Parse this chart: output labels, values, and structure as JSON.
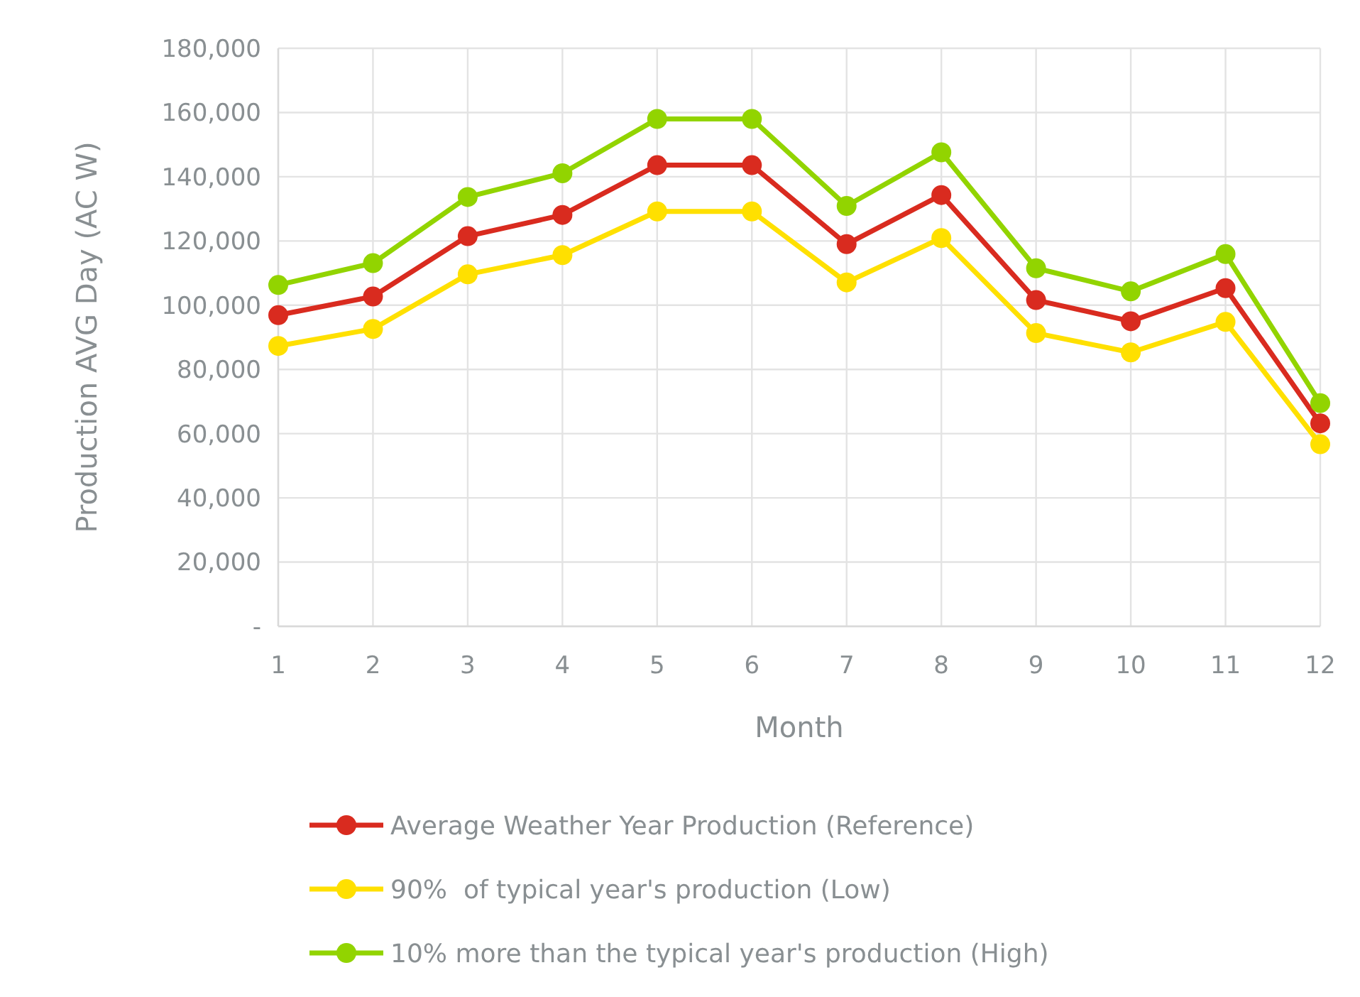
{
  "chart_data": {
    "type": "line",
    "xlabel": "Month",
    "ylabel": "Production AVG Day (AC W)",
    "x": [
      1,
      2,
      3,
      4,
      5,
      6,
      7,
      8,
      9,
      10,
      11,
      12
    ],
    "xlim": [
      1,
      12
    ],
    "xticks": [
      1,
      2,
      3,
      4,
      5,
      6,
      7,
      8,
      9,
      10,
      11,
      12
    ],
    "series": [
      {
        "name": "Average Weather Year Production (Reference)",
        "color": "#d92b1f",
        "values": [
          96900,
          102700,
          121500,
          128100,
          143600,
          143600,
          119000,
          134300,
          101600,
          95000,
          105300,
          63200
        ]
      },
      {
        "name": "90%  of typical year's production (Low)",
        "color": "#ffe000",
        "values": [
          87300,
          92600,
          109600,
          115600,
          129200,
          129200,
          107100,
          120900,
          91300,
          85300,
          94800,
          56700
        ]
      },
      {
        "name": "10% more than the typical year's production (High)",
        "color": "#92d400",
        "values": [
          106300,
          113100,
          133700,
          141100,
          158000,
          158000,
          130900,
          147600,
          111500,
          104300,
          115900,
          69500
        ]
      }
    ],
    "ylim": [
      0,
      180000
    ],
    "yticks": [
      {
        "value": 0,
        "label": "-"
      },
      {
        "value": 20000,
        "label": "20,000"
      },
      {
        "value": 40000,
        "label": "40,000"
      },
      {
        "value": 60000,
        "label": "60,000"
      },
      {
        "value": 80000,
        "label": "80,000"
      },
      {
        "value": 100000,
        "label": "100,000"
      },
      {
        "value": 120000,
        "label": "120,000"
      },
      {
        "value": 140000,
        "label": "140,000"
      },
      {
        "value": 160000,
        "label": "160,000"
      },
      {
        "value": 180000,
        "label": "180,000"
      }
    ],
    "grid": true,
    "legend": "bottom",
    "marker": "circle",
    "line_style": "solid"
  }
}
